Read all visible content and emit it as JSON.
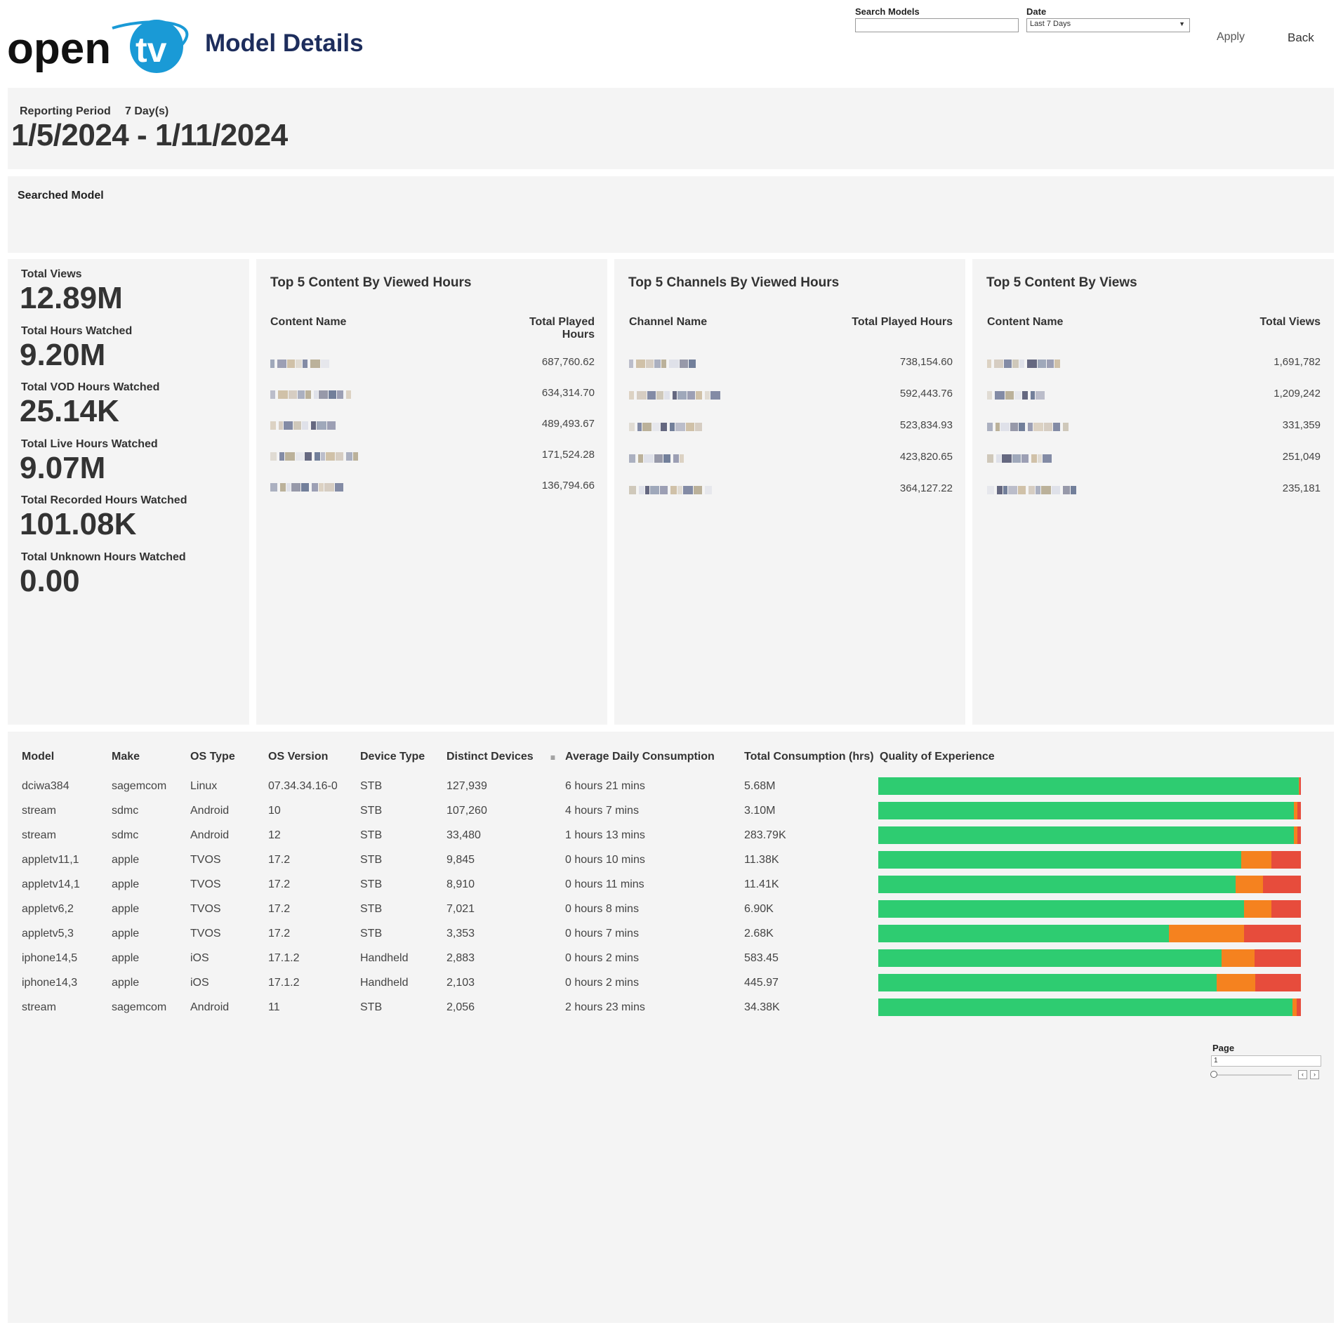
{
  "header": {
    "title": "Model Details",
    "logo_text": "opentv",
    "search": {
      "label": "Search Models",
      "value": "",
      "placeholder": ""
    },
    "date": {
      "label": "Date",
      "value": "Last 7 Days"
    },
    "apply_label": "Apply",
    "back_label": "Back"
  },
  "period": {
    "label": "Reporting Period",
    "days": "7 Day(s)",
    "range": "1/5/2024 - 1/11/2024"
  },
  "searched_model": {
    "label": "Searched Model"
  },
  "kpis": [
    {
      "label": "Total Views",
      "value": "12.89M"
    },
    {
      "label": "Total Hours Watched",
      "value": "9.20M"
    },
    {
      "label": "Total VOD Hours Watched",
      "value": "25.14K"
    },
    {
      "label": "Total Live Hours Watched",
      "value": "9.07M"
    },
    {
      "label": "Total Recorded Hours Watched",
      "value": "101.08K"
    },
    {
      "label": "Total Unknown Hours Watched",
      "value": "0.00"
    }
  ],
  "cards": [
    {
      "title": "Top 5 Content By Viewed Hours",
      "col_name": "Content Name",
      "col_value": "Total Played Hours",
      "values": [
        "687,760.62",
        "634,314.70",
        "489,493.67",
        "171,524.28",
        "136,794.66"
      ]
    },
    {
      "title": "Top 5 Channels By Viewed Hours",
      "col_name": "Channel Name",
      "col_value": "Total Played Hours",
      "values": [
        "738,154.60",
        "592,443.76",
        "523,834.93",
        "423,820.65",
        "364,127.22"
      ]
    },
    {
      "title": "Top 5 Content By Views",
      "col_name": "Content Name",
      "col_value": "Total Views",
      "values": [
        "1,691,782",
        "1,209,242",
        "331,359",
        "251,049",
        "235,181"
      ]
    }
  ],
  "table": {
    "columns": [
      "Model",
      "Make",
      "OS Type",
      "OS Version",
      "Device Type",
      "Distinct Devices",
      "Average Daily Consumption",
      "Total Consumption (hrs)",
      "Quality of Experience"
    ],
    "sort_icon": "sort-icon",
    "rows": [
      [
        "dciwa384",
        "sagemcom",
        "Linux",
        "07.34.34.16-0",
        "STB",
        "127,939",
        "6 hours 21 mins",
        "5.68M"
      ],
      [
        "stream",
        "sdmc",
        "Android",
        "10",
        "STB",
        "107,260",
        "4 hours 7 mins",
        "3.10M"
      ],
      [
        "stream",
        "sdmc",
        "Android",
        "12",
        "STB",
        "33,480",
        "1 hours 13 mins",
        "283.79K"
      ],
      [
        "appletv11,1",
        "apple",
        "TVOS",
        "17.2",
        "STB",
        "9,845",
        "0 hours 10 mins",
        "11.38K"
      ],
      [
        "appletv14,1",
        "apple",
        "TVOS",
        "17.2",
        "STB",
        "8,910",
        "0 hours 11 mins",
        "11.41K"
      ],
      [
        "appletv6,2",
        "apple",
        "TVOS",
        "17.2",
        "STB",
        "7,021",
        "0 hours 8 mins",
        "6.90K"
      ],
      [
        "appletv5,3",
        "apple",
        "TVOS",
        "17.2",
        "STB",
        "3,353",
        "0 hours 7 mins",
        "2.68K"
      ],
      [
        "iphone14,5",
        "apple",
        "iOS",
        "17.1.2",
        "Handheld",
        "2,883",
        "0 hours 2 mins",
        "583.45"
      ],
      [
        "iphone14,3",
        "apple",
        "iOS",
        "17.1.2",
        "Handheld",
        "2,103",
        "0 hours 2 mins",
        "445.97"
      ],
      [
        "stream",
        "sagemcom",
        "Android",
        "11",
        "STB",
        "2,056",
        "2 hours 23 mins",
        "34.38K"
      ]
    ],
    "qoe": [
      [
        0.995,
        0.002,
        0.003
      ],
      [
        0.984,
        0.008,
        0.008
      ],
      [
        0.984,
        0.008,
        0.008
      ],
      [
        0.858,
        0.072,
        0.07
      ],
      [
        0.845,
        0.065,
        0.09
      ],
      [
        0.865,
        0.065,
        0.07
      ],
      [
        0.688,
        0.178,
        0.134
      ],
      [
        0.812,
        0.078,
        0.11
      ],
      [
        0.8,
        0.092,
        0.108
      ],
      [
        0.98,
        0.01,
        0.01
      ]
    ],
    "qoe_colors": [
      "#2ecc71",
      "#f5821f",
      "#e74c3c"
    ]
  },
  "pager": {
    "label": "Page",
    "value": "1"
  }
}
